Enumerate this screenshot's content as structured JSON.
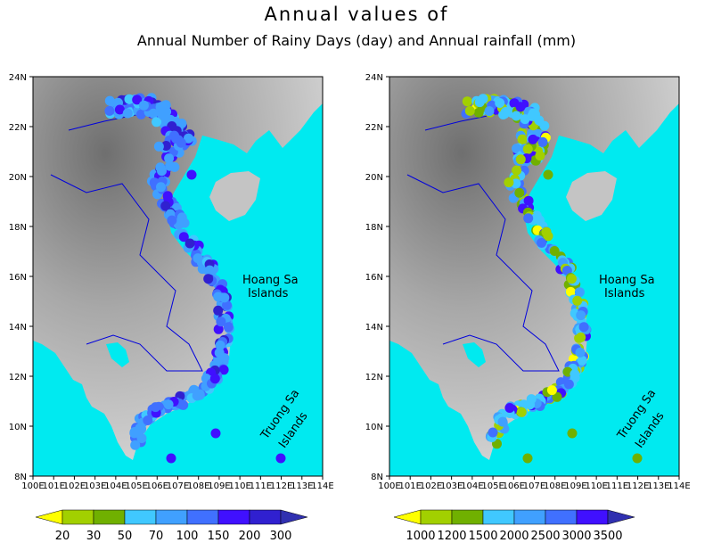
{
  "title": {
    "line1": "Annual values of",
    "line2": "Annual Number of Rainy Days (day) and Annual rainfall (mm)"
  },
  "axes": {
    "lat_ticks": [
      "24N",
      "22N",
      "20N",
      "18N",
      "16N",
      "14N",
      "12N",
      "10N",
      "8N"
    ],
    "lon_ticks": [
      "100E",
      "101E",
      "102E",
      "103E",
      "104E",
      "105E",
      "106E",
      "107E",
      "108E",
      "109E",
      "110E",
      "111E",
      "112E",
      "113E",
      "114E"
    ],
    "lat_range": [
      8,
      24
    ],
    "lon_range": [
      100,
      114
    ]
  },
  "labels": {
    "hoang_sa_1": "Hoang Sa",
    "hoang_sa_2": "Islands",
    "truong_sa_1": "Truong Sa",
    "truong_sa_2": "Islands"
  },
  "colors": {
    "sea": "#00eaf0",
    "land_light": "#d2d2d2",
    "land_dark": "#8c8c8c",
    "border": "#0000dd"
  },
  "panels": [
    {
      "id": "rainy-days",
      "colorbar": {
        "labels": [
          "20",
          "30",
          "50",
          "70",
          "100",
          "150",
          "200",
          "300"
        ],
        "colors": [
          "#ffff00",
          "#a2d000",
          "#70b000",
          "#40c8ff",
          "#40a0ff",
          "#4070ff",
          "#4010ff",
          "#3020d0",
          "#3030b0"
        ]
      }
    },
    {
      "id": "rainfall",
      "colorbar": {
        "labels": [
          "1000",
          "1200",
          "1500",
          "2000",
          "2500",
          "3000",
          "3500"
        ],
        "colors": [
          "#ffff00",
          "#a2d000",
          "#70b000",
          "#40c8ff",
          "#40a0ff",
          "#4070ff",
          "#4010ff",
          "#3030b0"
        ]
      }
    }
  ]
}
